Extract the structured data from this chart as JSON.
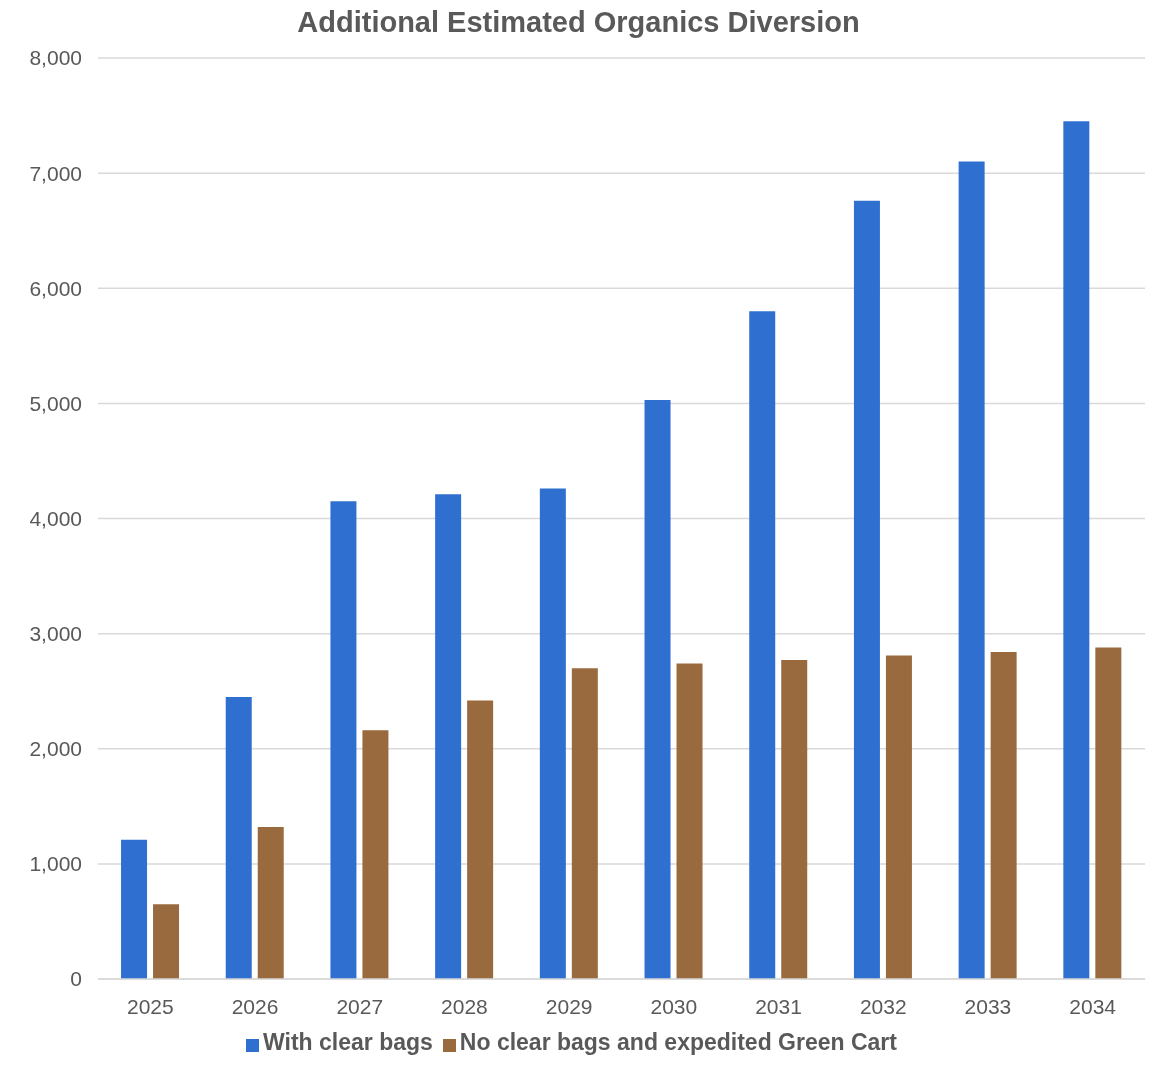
{
  "chart_data": {
    "type": "bar",
    "title": "Additional Estimated Organics Diversion",
    "categories": [
      "2025",
      "2026",
      "2027",
      "2028",
      "2029",
      "2030",
      "2031",
      "2032",
      "2033",
      "2034"
    ],
    "series": [
      {
        "name": "With clear bags",
        "color": "#2e6fd0",
        "values": [
          1210,
          2450,
          4150,
          4210,
          4260,
          5030,
          5800,
          6760,
          7100,
          7450
        ]
      },
      {
        "name": "No clear bags and expedited Green Cart",
        "color": "#9a6a3f",
        "values": [
          650,
          1320,
          2160,
          2420,
          2700,
          2740,
          2770,
          2810,
          2840,
          2880
        ]
      }
    ],
    "ylim": [
      0,
      8000
    ],
    "yticks": [
      0,
      {
        "value": 1000,
        "label": "1,000"
      },
      {
        "value": 2000,
        "label": "2,000"
      },
      {
        "value": 3000,
        "label": "3,000"
      },
      {
        "value": 4000,
        "label": "4,000"
      },
      {
        "value": 5000,
        "label": "5,000"
      },
      {
        "value": 6000,
        "label": "6,000"
      },
      {
        "value": 7000,
        "label": "7,000"
      },
      {
        "value": 8000,
        "label": "8,000"
      }
    ],
    "grid": "y",
    "legend": "bottom"
  }
}
